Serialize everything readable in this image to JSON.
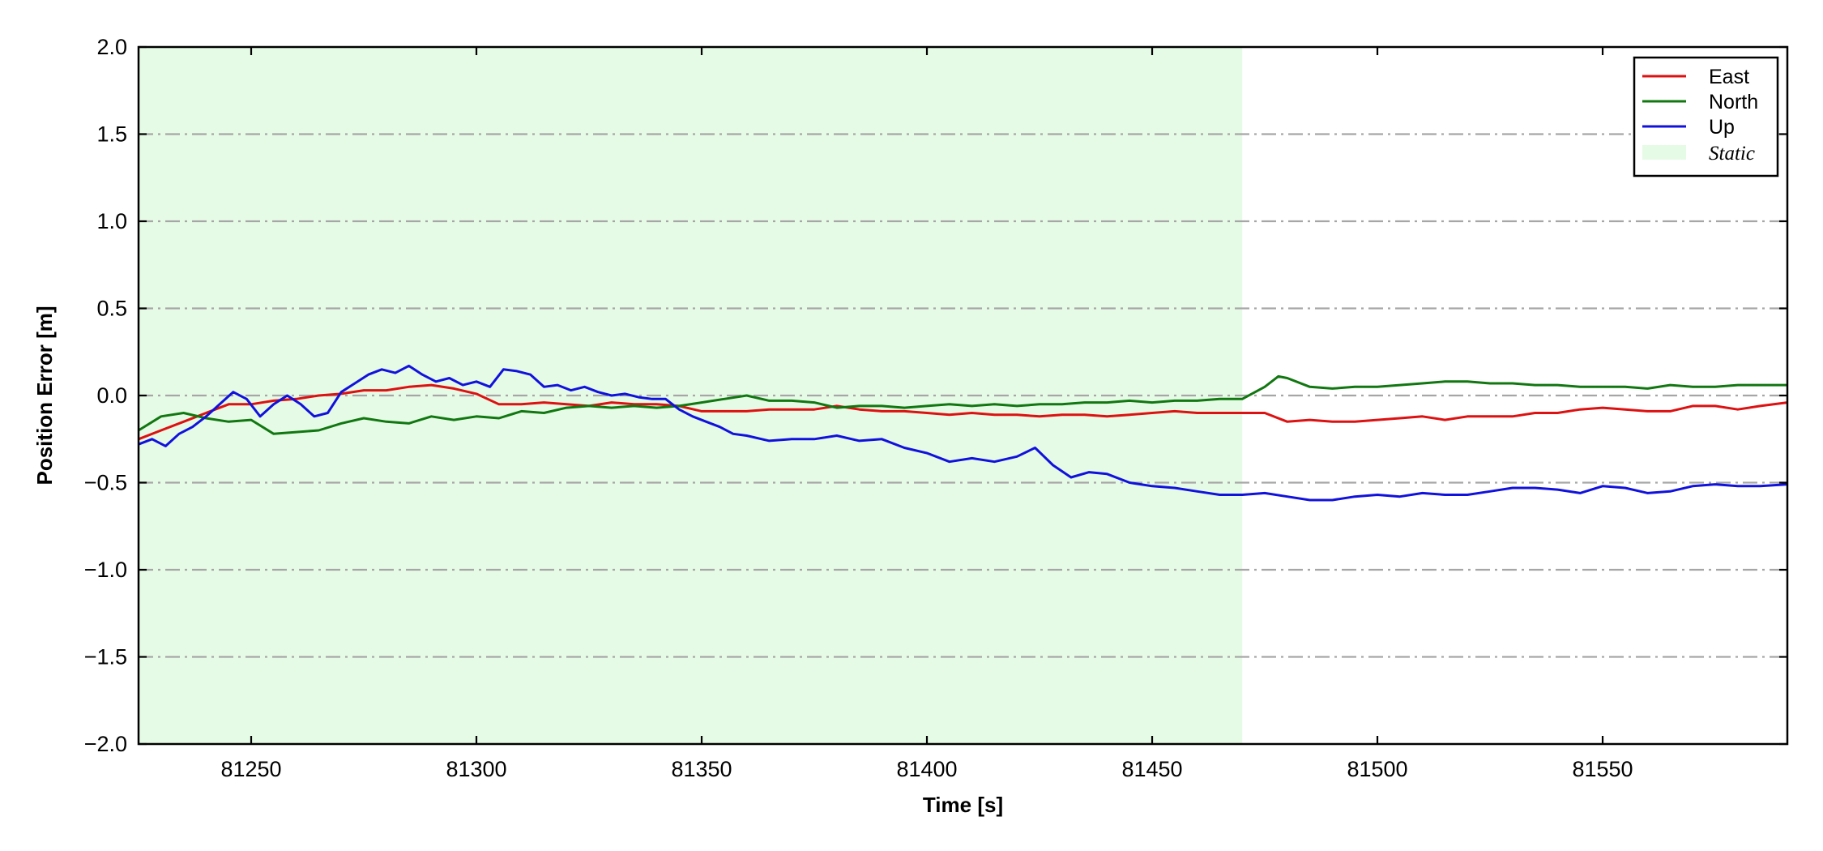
{
  "chart_data": {
    "type": "line",
    "xlabel": "Time [s]",
    "ylabel": "Position Error [m]",
    "xlim": [
      81225,
      81591
    ],
    "ylim": [
      -2.0,
      2.0
    ],
    "xticks": [
      81250,
      81300,
      81350,
      81400,
      81450,
      81500,
      81550
    ],
    "yticks": [
      -2.0,
      -1.5,
      -1.0,
      -0.5,
      0.0,
      0.5,
      1.0,
      1.5,
      2.0
    ],
    "ytick_labels": [
      "−2.0",
      "−1.5",
      "−1.0",
      "−0.5",
      "0.0",
      "0.5",
      "1.0",
      "1.5",
      "2.0"
    ],
    "grid": "horizontal dash-dot",
    "legend_position": "top-right",
    "shaded_region": {
      "label": "Static",
      "x": [
        81225,
        81470
      ],
      "color": "#e6fbe6"
    },
    "series": [
      {
        "name": "East",
        "color": "#dd1111",
        "x": [
          81225,
          81230,
          81235,
          81240,
          81245,
          81250,
          81255,
          81260,
          81265,
          81270,
          81275,
          81280,
          81285,
          81290,
          81295,
          81300,
          81305,
          81310,
          81315,
          81320,
          81325,
          81330,
          81335,
          81340,
          81345,
          81350,
          81355,
          81360,
          81365,
          81370,
          81375,
          81380,
          81385,
          81390,
          81395,
          81400,
          81405,
          81410,
          81415,
          81420,
          81425,
          81430,
          81435,
          81440,
          81445,
          81450,
          81455,
          81460,
          81465,
          81470,
          81475,
          81480,
          81485,
          81490,
          81495,
          81500,
          81505,
          81510,
          81515,
          81520,
          81525,
          81530,
          81535,
          81540,
          81545,
          81550,
          81555,
          81560,
          81565,
          81570,
          81575,
          81580,
          81585,
          81591
        ],
        "y": [
          -0.25,
          -0.2,
          -0.15,
          -0.1,
          -0.05,
          -0.05,
          -0.03,
          -0.02,
          0.0,
          0.01,
          0.03,
          0.03,
          0.05,
          0.06,
          0.04,
          0.01,
          -0.05,
          -0.05,
          -0.04,
          -0.05,
          -0.06,
          -0.04,
          -0.05,
          -0.05,
          -0.06,
          -0.09,
          -0.09,
          -0.09,
          -0.08,
          -0.08,
          -0.08,
          -0.06,
          -0.08,
          -0.09,
          -0.09,
          -0.1,
          -0.11,
          -0.1,
          -0.11,
          -0.11,
          -0.12,
          -0.11,
          -0.11,
          -0.12,
          -0.11,
          -0.1,
          -0.09,
          -0.1,
          -0.1,
          -0.1,
          -0.1,
          -0.15,
          -0.14,
          -0.15,
          -0.15,
          -0.14,
          -0.13,
          -0.12,
          -0.14,
          -0.12,
          -0.12,
          -0.12,
          -0.1,
          -0.1,
          -0.08,
          -0.07,
          -0.08,
          -0.09,
          -0.09,
          -0.06,
          -0.06,
          -0.08,
          -0.06,
          -0.04
        ]
      },
      {
        "name": "North",
        "color": "#117711",
        "x": [
          81225,
          81230,
          81235,
          81240,
          81245,
          81250,
          81255,
          81260,
          81265,
          81270,
          81275,
          81280,
          81285,
          81290,
          81295,
          81300,
          81305,
          81310,
          81315,
          81320,
          81325,
          81330,
          81335,
          81340,
          81345,
          81350,
          81355,
          81360,
          81365,
          81370,
          81375,
          81380,
          81385,
          81390,
          81395,
          81400,
          81405,
          81410,
          81415,
          81420,
          81425,
          81430,
          81435,
          81440,
          81445,
          81450,
          81455,
          81460,
          81465,
          81470,
          81475,
          81478,
          81480,
          81485,
          81490,
          81495,
          81500,
          81505,
          81510,
          81515,
          81520,
          81525,
          81530,
          81535,
          81540,
          81545,
          81550,
          81555,
          81560,
          81565,
          81570,
          81575,
          81580,
          81585,
          81591
        ],
        "y": [
          -0.2,
          -0.12,
          -0.1,
          -0.13,
          -0.15,
          -0.14,
          -0.22,
          -0.21,
          -0.2,
          -0.16,
          -0.13,
          -0.15,
          -0.16,
          -0.12,
          -0.14,
          -0.12,
          -0.13,
          -0.09,
          -0.1,
          -0.07,
          -0.06,
          -0.07,
          -0.06,
          -0.07,
          -0.06,
          -0.04,
          -0.02,
          0.0,
          -0.03,
          -0.03,
          -0.04,
          -0.07,
          -0.06,
          -0.06,
          -0.07,
          -0.06,
          -0.05,
          -0.06,
          -0.05,
          -0.06,
          -0.05,
          -0.05,
          -0.04,
          -0.04,
          -0.03,
          -0.04,
          -0.03,
          -0.03,
          -0.02,
          -0.02,
          0.05,
          0.11,
          0.1,
          0.05,
          0.04,
          0.05,
          0.05,
          0.06,
          0.07,
          0.08,
          0.08,
          0.07,
          0.07,
          0.06,
          0.06,
          0.05,
          0.05,
          0.05,
          0.04,
          0.06,
          0.05,
          0.05,
          0.06,
          0.06,
          0.06
        ]
      },
      {
        "name": "Up",
        "color": "#1111dd",
        "x": [
          81225,
          81228,
          81231,
          81234,
          81237,
          81240,
          81243,
          81246,
          81249,
          81252,
          81255,
          81258,
          81261,
          81264,
          81267,
          81270,
          81273,
          81276,
          81279,
          81282,
          81285,
          81288,
          81291,
          81294,
          81297,
          81300,
          81303,
          81306,
          81309,
          81312,
          81315,
          81318,
          81321,
          81324,
          81327,
          81330,
          81333,
          81336,
          81339,
          81342,
          81345,
          81348,
          81351,
          81354,
          81357,
          81360,
          81365,
          81370,
          81375,
          81380,
          81385,
          81390,
          81395,
          81400,
          81405,
          81410,
          81415,
          81420,
          81424,
          81428,
          81432,
          81436,
          81440,
          81445,
          81450,
          81455,
          81460,
          81465,
          81470,
          81475,
          81480,
          81485,
          81490,
          81495,
          81500,
          81505,
          81510,
          81515,
          81520,
          81525,
          81530,
          81535,
          81540,
          81545,
          81550,
          81555,
          81560,
          81565,
          81570,
          81575,
          81580,
          81585,
          81591
        ],
        "y": [
          -0.28,
          -0.25,
          -0.29,
          -0.22,
          -0.18,
          -0.12,
          -0.05,
          0.02,
          -0.02,
          -0.12,
          -0.05,
          0.0,
          -0.05,
          -0.12,
          -0.1,
          0.02,
          0.07,
          0.12,
          0.15,
          0.13,
          0.17,
          0.12,
          0.08,
          0.1,
          0.06,
          0.08,
          0.05,
          0.15,
          0.14,
          0.12,
          0.05,
          0.06,
          0.03,
          0.05,
          0.02,
          0.0,
          0.01,
          -0.01,
          -0.02,
          -0.02,
          -0.08,
          -0.12,
          -0.15,
          -0.18,
          -0.22,
          -0.23,
          -0.26,
          -0.25,
          -0.25,
          -0.23,
          -0.26,
          -0.25,
          -0.3,
          -0.33,
          -0.38,
          -0.36,
          -0.38,
          -0.35,
          -0.3,
          -0.4,
          -0.47,
          -0.44,
          -0.45,
          -0.5,
          -0.52,
          -0.53,
          -0.55,
          -0.57,
          -0.57,
          -0.56,
          -0.58,
          -0.6,
          -0.6,
          -0.58,
          -0.57,
          -0.58,
          -0.56,
          -0.57,
          -0.57,
          -0.55,
          -0.53,
          -0.53,
          -0.54,
          -0.56,
          -0.52,
          -0.53,
          -0.56,
          -0.55,
          -0.52,
          -0.51,
          -0.52,
          -0.52,
          -0.51
        ]
      }
    ]
  }
}
